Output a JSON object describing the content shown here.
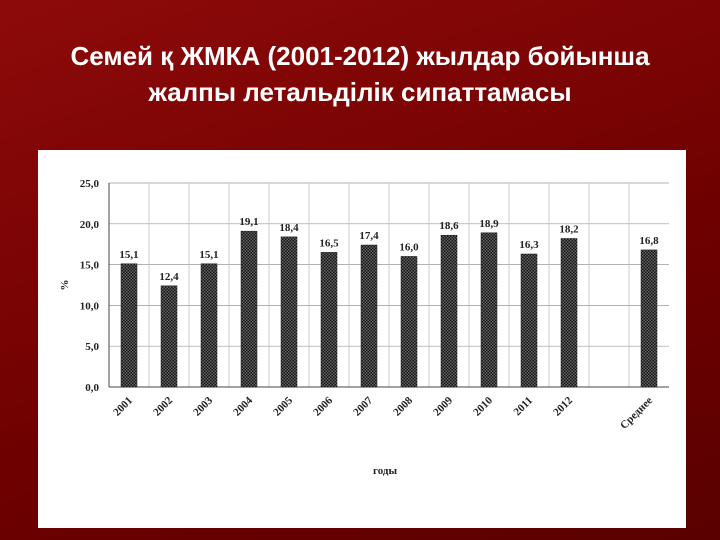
{
  "slide": {
    "title": [
      "Семей қ ЖМКА (2001-2012) жылдар бойынша",
      "жалпы летальділік сипаттамасы"
    ]
  },
  "chart_data": {
    "type": "bar",
    "categories": [
      "2001",
      "2002",
      "2003",
      "2004",
      "2005",
      "2006",
      "2007",
      "2008",
      "2009",
      "2010",
      "2011",
      "2012",
      null,
      "Среднее"
    ],
    "values": [
      15.1,
      12.4,
      15.1,
      19.1,
      18.4,
      16.5,
      17.4,
      16.0,
      18.6,
      18.9,
      16.3,
      18.2,
      null,
      16.8
    ],
    "value_labels": [
      "15,1",
      "12,4",
      "15,1",
      "19,1",
      "18,4",
      "16,5",
      "17,4",
      "16,0",
      "18,6",
      "18,9",
      "16,3",
      "18,2",
      null,
      "16,8"
    ],
    "ylim": [
      0,
      25
    ],
    "yticks": [
      {
        "value": 0,
        "label": "0,0"
      },
      {
        "value": 5,
        "label": "5,0"
      },
      {
        "value": 10,
        "label": "10,0"
      },
      {
        "value": 15,
        "label": "15,0"
      },
      {
        "value": 20,
        "label": "20,0"
      },
      {
        "value": 25,
        "label": "25,0"
      }
    ],
    "y_label": "%",
    "x_label": "годы",
    "grid": true,
    "color": "#1a1a1a"
  }
}
